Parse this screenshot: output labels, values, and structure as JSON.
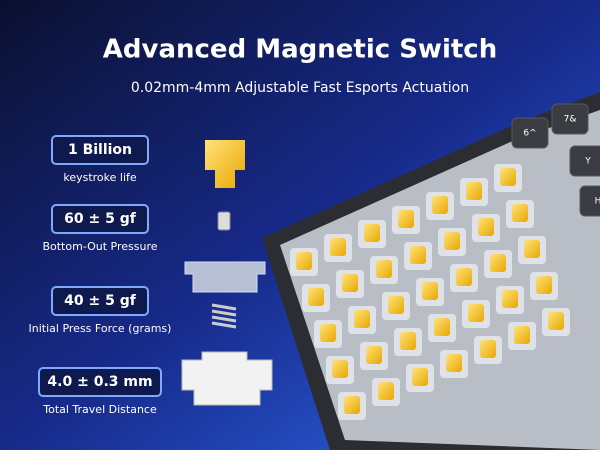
{
  "header": {
    "title": "Advanced Magnetic Switch",
    "subtitle": "0.02mm-4mm Adjustable Fast Esports Actuation"
  },
  "specs": [
    {
      "value": "1 Billion",
      "label": "keystroke life"
    },
    {
      "value": "60 ± 5 gf",
      "label": "Bottom-Out Pressure"
    },
    {
      "value": "40 ± 5 gf",
      "label": "Initial Press Force (grams)"
    },
    {
      "value": "4.0 ± 0.3 mm",
      "label": "Total Travel Distance"
    }
  ],
  "keycaps": [
    "6^",
    "7&",
    "Y",
    "H"
  ]
}
